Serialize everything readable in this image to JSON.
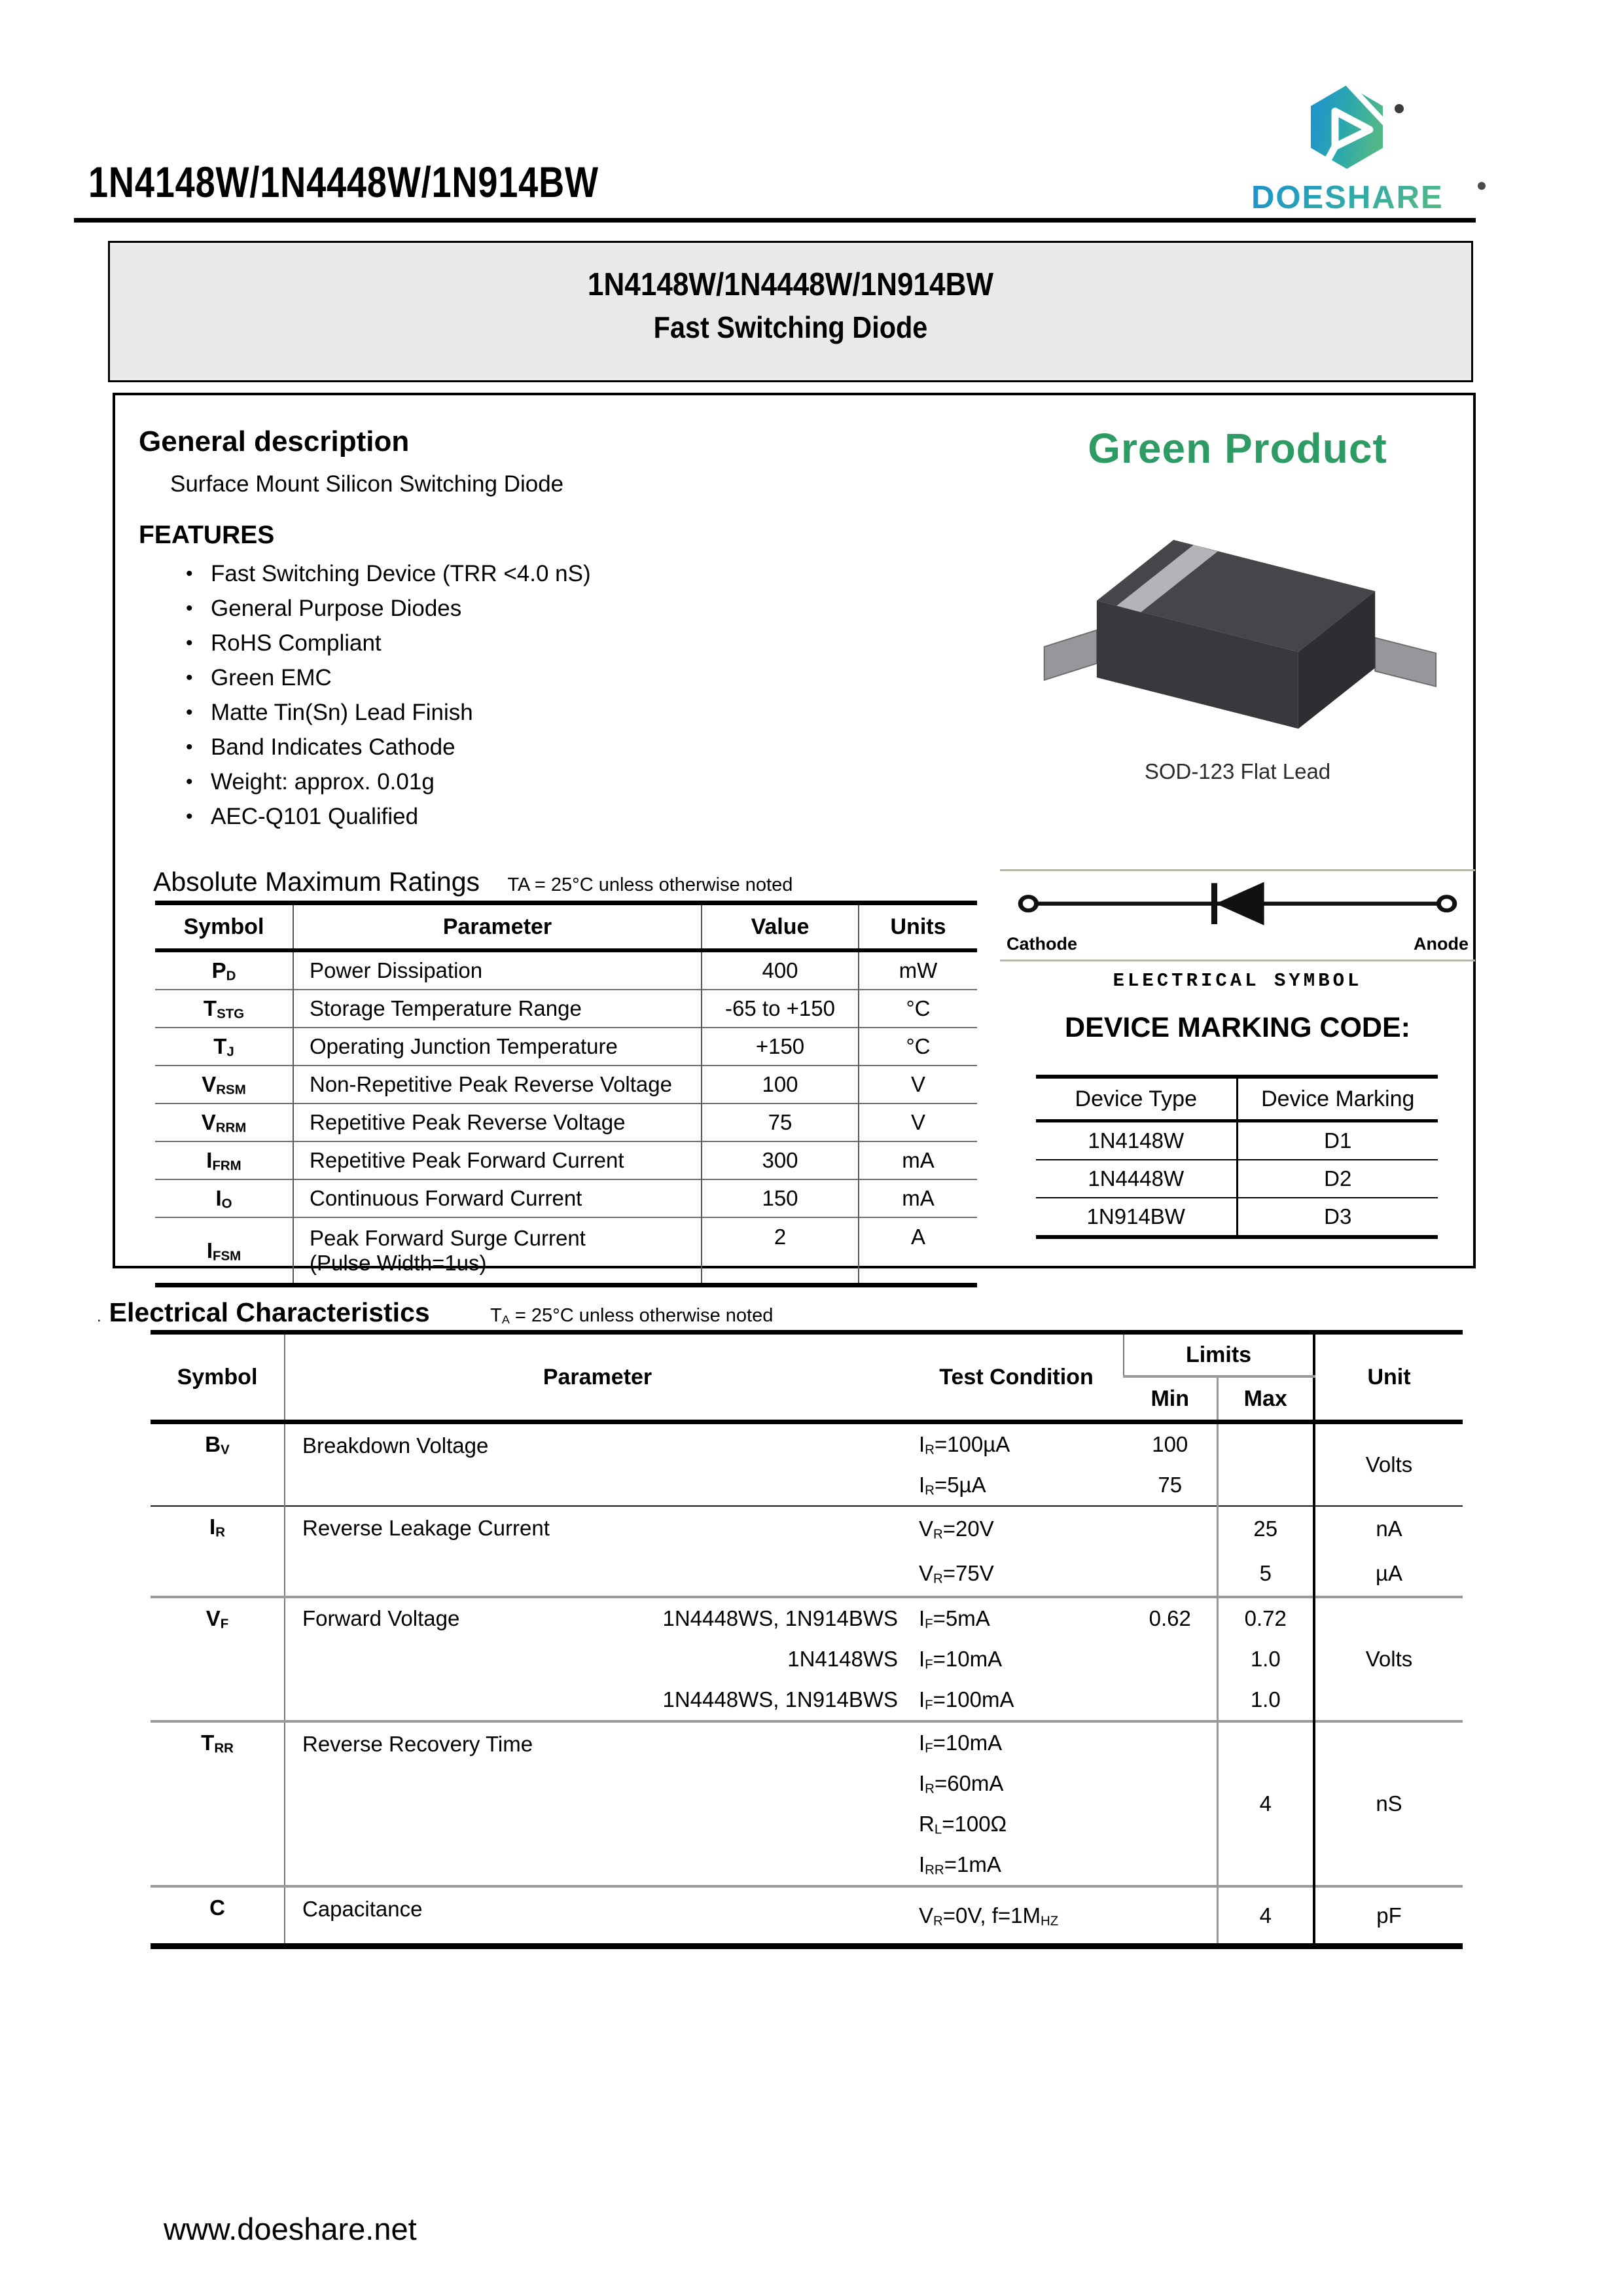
{
  "page": {
    "title": "1N4148W/1N4448W/1N914BW",
    "footer_url": "www.doeshare.net"
  },
  "logo": {
    "brand": "DOESHARE",
    "registered": "®"
  },
  "banner": {
    "line1": "1N4148W/1N4448W/1N914BW",
    "line2": "Fast Switching Diode"
  },
  "general": {
    "heading": "General description",
    "subtitle": "Surface Mount Silicon Switching Diode",
    "features_heading": "FEATURES",
    "features": [
      "Fast Switching Device (TRR <4.0 nS)",
      "General Purpose Diodes",
      "RoHS Compliant",
      "Green EMC",
      "Matte Tin(Sn) Lead Finish",
      "Band Indicates Cathode",
      "Weight: approx. 0.01g",
      "AEC-Q101 Qualified"
    ]
  },
  "product_badge": "Green Product",
  "package": {
    "label": "SOD-123 Flat Lead"
  },
  "electrical_symbol": {
    "cathode_label": "Cathode",
    "anode_label": "Anode",
    "caption": "ELECTRICAL SYMBOL"
  },
  "device_marking": {
    "heading": "DEVICE MARKING CODE:",
    "headers": [
      "Device Type",
      "Device Marking"
    ],
    "rows": [
      {
        "type": "1N4148W",
        "marking": "D1"
      },
      {
        "type": "1N4448W",
        "marking": "D2"
      },
      {
        "type": "1N914BW",
        "marking": "D3"
      }
    ]
  },
  "abs_max": {
    "heading": "Absolute Maximum Ratings",
    "note": "TA = 25°C unless otherwise noted",
    "headers": [
      "Symbol",
      "Parameter",
      "Value",
      "Units"
    ],
    "rows": [
      {
        "symbol": "P~D~",
        "parameter": "Power Dissipation",
        "value": "400",
        "units": "mW"
      },
      {
        "symbol": "T~STG~",
        "parameter": "Storage Temperature Range",
        "value": "-65 to +150",
        "units": "°C"
      },
      {
        "symbol": "T~J~",
        "parameter": "Operating Junction Temperature",
        "value": "+150",
        "units": "°C"
      },
      {
        "symbol": "V~RSM~",
        "parameter": "Non-Repetitive Peak Reverse Voltage",
        "value": "100",
        "units": "V"
      },
      {
        "symbol": "V~RRM~",
        "parameter": "Repetitive Peak Reverse Voltage",
        "value": "75",
        "units": "V"
      },
      {
        "symbol": "I~FRM~",
        "parameter": "Repetitive Peak Forward Current",
        "value": "300",
        "units": "mA"
      },
      {
        "symbol": "I~O~",
        "parameter": "Continuous Forward Current",
        "value": "150",
        "units": "mA"
      },
      {
        "symbol": "I~FSM~",
        "parameter": "Peak Forward Surge Current",
        "parameter_line2": "(Pulse Width=1us)",
        "value": "2",
        "units": "A"
      }
    ]
  },
  "elec_char": {
    "heading_prefix": ".",
    "heading": "Electrical Characteristics",
    "note": "T~A~ = 25°C unless otherwise noted",
    "headers": {
      "symbol": "Symbol",
      "parameter": "Parameter",
      "test_condition": "Test Condition",
      "limits": "Limits",
      "min": "Min",
      "max": "Max",
      "unit": "Unit"
    },
    "bv": {
      "symbol": "B~V~",
      "parameter": "Breakdown Voltage",
      "unit": "Volts",
      "rows": [
        {
          "tc": "I~R~=100µA",
          "min": "100",
          "max": ""
        },
        {
          "tc": "I~R~=5µA",
          "min": "75",
          "max": ""
        }
      ]
    },
    "ir": {
      "symbol": "I~R~",
      "parameter": "Reverse Leakage Current",
      "rows": [
        {
          "tc": "V~R~=20V",
          "min": "",
          "max": "25",
          "unit": "nA"
        },
        {
          "tc": "V~R~=75V",
          "min": "",
          "max": "5",
          "unit": "µA"
        }
      ]
    },
    "vf": {
      "symbol": "V~F~",
      "parameter": "Forward Voltage",
      "unit": "Volts",
      "rows": [
        {
          "devices": "1N4448WS, 1N914BWS",
          "tc": "I~F~=5mA",
          "min": "0.62",
          "max": "0.72"
        },
        {
          "devices": "1N4148WS",
          "tc": "I~F~=10mA",
          "min": "",
          "max": "1.0"
        },
        {
          "devices": "1N4448WS, 1N914BWS",
          "tc": "I~F~=100mA",
          "min": "",
          "max": "1.0"
        }
      ]
    },
    "trr": {
      "symbol": "T~RR~",
      "parameter": "Reverse Recovery Time",
      "conditions": [
        "I~F~=10mA",
        "I~R~=60mA",
        "R~L~=100Ω",
        "I~RR~=1mA"
      ],
      "min": "",
      "max": "4",
      "unit": "nS"
    },
    "c": {
      "symbol": "C",
      "parameter": "Capacitance",
      "tc": "V~R~=0V, f=1M~HZ~",
      "min": "",
      "max": "4",
      "unit": "pF"
    }
  }
}
